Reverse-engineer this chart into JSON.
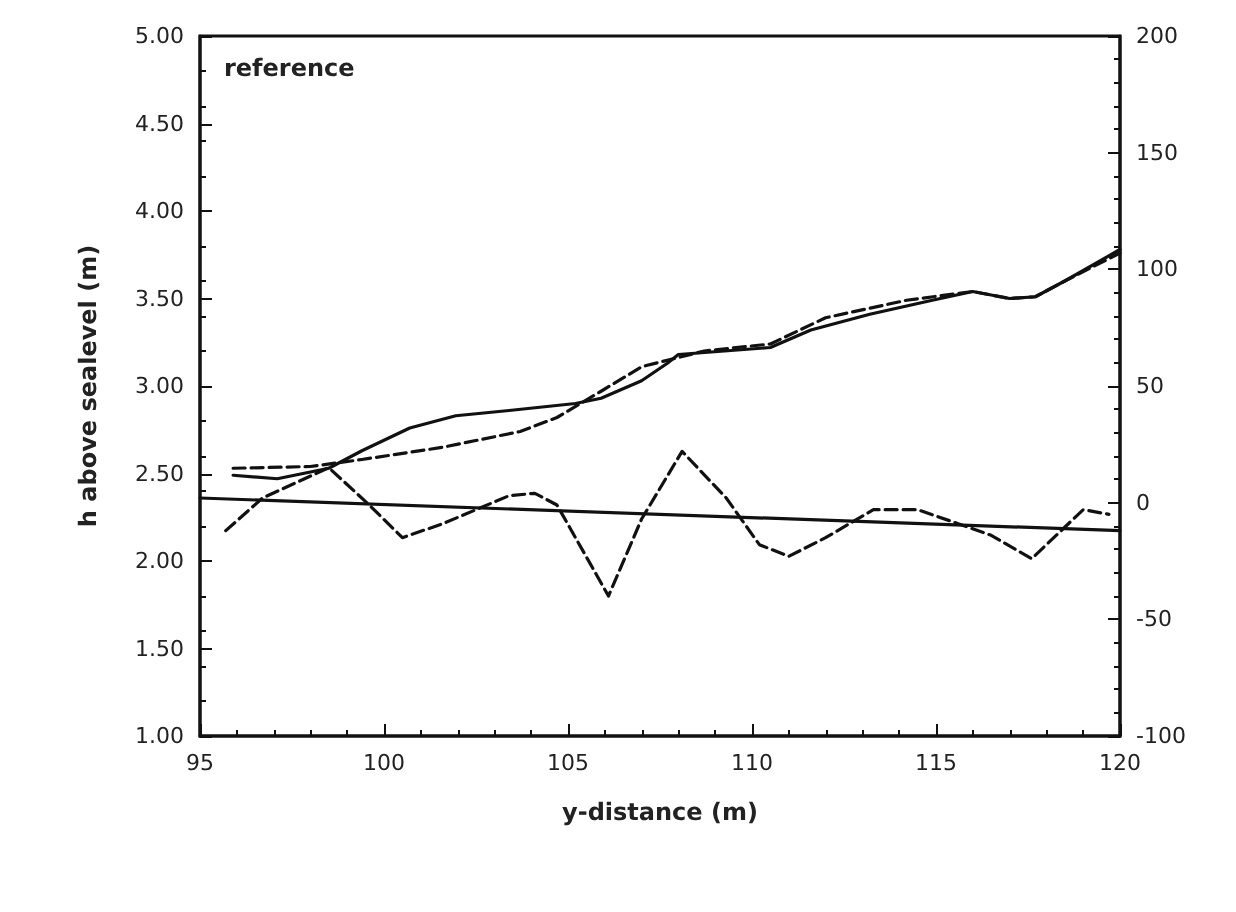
{
  "chart_data": {
    "type": "line",
    "xlabel": "y-distance (m)",
    "ylabel": "h above sealevel (m)",
    "annotations": [
      "reference"
    ],
    "xlim": [
      95,
      120
    ],
    "xticks": [
      95,
      100,
      105,
      110,
      115,
      120
    ],
    "ylim": [
      1,
      5
    ],
    "yticks": [
      {
        "value": 1,
        "label": "1.00"
      },
      {
        "value": 1.5,
        "label": "1.50"
      },
      {
        "value": 2,
        "label": "2.00"
      },
      {
        "value": 2.5,
        "label": "2.50"
      },
      {
        "value": 3,
        "label": "3.00"
      },
      {
        "value": 3.5,
        "label": "3.50"
      },
      {
        "value": 4,
        "label": "4.00"
      },
      {
        "value": 4.5,
        "label": "4.50"
      },
      {
        "value": 5,
        "label": "5.00"
      }
    ],
    "y2lim": [
      -100,
      200
    ],
    "y2ticks": [
      -100,
      -50,
      0,
      50,
      100,
      150,
      200
    ],
    "grid": false,
    "marker": "none",
    "series": [
      {
        "color": "#111111",
        "line_style": "solid",
        "x": [
          95.9,
          97.1,
          98.5,
          99.4,
          100.7,
          101.95,
          103.4,
          105.2,
          105.9,
          107.0,
          107.7,
          108.0,
          110.5,
          111.6,
          113.2,
          114.9,
          116.0,
          117.0,
          117.7,
          118.5,
          120
        ],
        "values": [
          2.49,
          2.47,
          2.53,
          2.63,
          2.76,
          2.83,
          2.86,
          2.9,
          2.93,
          3.03,
          3.13,
          3.18,
          3.22,
          3.32,
          3.41,
          3.49,
          3.54,
          3.5,
          3.51,
          3.6,
          3.78
        ]
      },
      {
        "color": "#111111",
        "line_style": "dashed",
        "x": [
          95.9,
          98.0,
          99.4,
          101.6,
          103.7,
          104.7,
          105.9,
          107.0,
          108.7,
          110.5,
          112.0,
          114.2,
          116.0,
          117.0,
          117.7,
          118.5,
          120
        ],
        "values": [
          2.53,
          2.54,
          2.58,
          2.65,
          2.74,
          2.82,
          2.97,
          3.11,
          3.2,
          3.24,
          3.39,
          3.49,
          3.54,
          3.5,
          3.51,
          3.6,
          3.76
        ]
      },
      {
        "color": "#111111",
        "line_style": "dashed",
        "axis": "y2",
        "x": [
          95.7,
          96.7,
          98.5,
          99.6,
          100.5,
          101.6,
          103.4,
          104.1,
          104.7,
          106.1,
          107.0,
          108.1,
          109.3,
          110.2,
          111.0,
          112.0,
          113.3,
          114.5,
          115.6,
          116.5,
          117.6,
          119.0,
          119.7
        ],
        "values": [
          -12,
          2,
          15,
          -1,
          -15,
          -9,
          3,
          4,
          -1,
          -40,
          -7,
          22,
          2,
          -18,
          -23,
          -15,
          -3,
          -3,
          -9,
          -14,
          -24,
          -3,
          -5
        ]
      },
      {
        "color": "#111111",
        "line_style": "solid",
        "axis": "y2",
        "x": [
          95,
          120
        ],
        "values": [
          2,
          -12
        ]
      }
    ]
  }
}
